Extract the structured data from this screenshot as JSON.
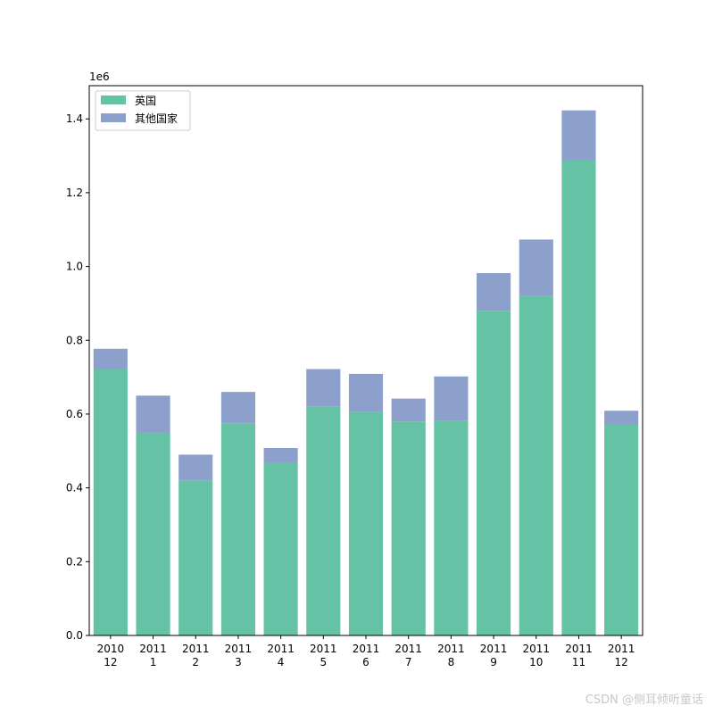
{
  "chart_data": {
    "type": "bar",
    "stacked": true,
    "categories": [
      [
        "2010",
        "12"
      ],
      [
        "2011",
        "1"
      ],
      [
        "2011",
        "2"
      ],
      [
        "2011",
        "3"
      ],
      [
        "2011",
        "4"
      ],
      [
        "2011",
        "5"
      ],
      [
        "2011",
        "6"
      ],
      [
        "2011",
        "7"
      ],
      [
        "2011",
        "8"
      ],
      [
        "2011",
        "9"
      ],
      [
        "2011",
        "10"
      ],
      [
        "2011",
        "11"
      ],
      [
        "2011",
        "12"
      ]
    ],
    "series": [
      {
        "name": "英国",
        "color": "#66c2a5",
        "values": [
          722000,
          548000,
          420000,
          575000,
          468000,
          620000,
          605000,
          580000,
          582000,
          880000,
          920000,
          1288000,
          572000
        ]
      },
      {
        "name": "其他国家",
        "color": "#8da0cb",
        "values": [
          55000,
          102000,
          70000,
          85000,
          40000,
          102000,
          104000,
          62000,
          120000,
          102000,
          153000,
          135000,
          37000
        ]
      }
    ],
    "ylim": [
      0,
      1490000
    ],
    "yticks": [
      0,
      200000,
      400000,
      600000,
      800000,
      1000000,
      1200000,
      1400000
    ],
    "ytick_labels": [
      "0.0",
      "0.2",
      "0.4",
      "0.6",
      "0.8",
      "1.0",
      "1.2",
      "1.4"
    ],
    "y_scale_label": "1e6",
    "legend_position": "top-left",
    "title": "",
    "xlabel": "",
    "ylabel": ""
  },
  "watermark": "CSDN @侧耳倾听童话"
}
